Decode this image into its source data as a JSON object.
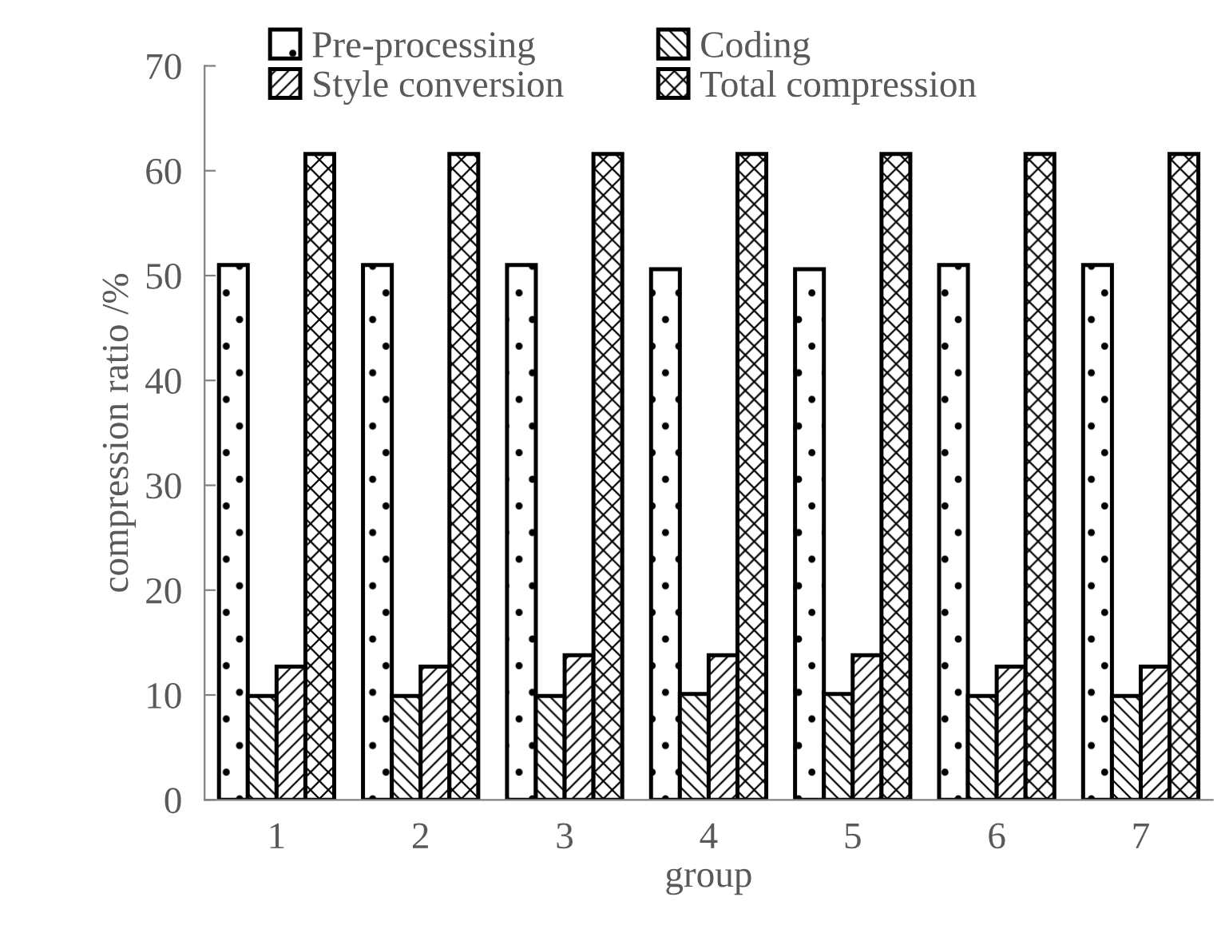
{
  "chart_data": {
    "type": "bar",
    "xlabel": "group",
    "ylabel": "compression ratio /%",
    "categories": [
      "1",
      "2",
      "3",
      "4",
      "5",
      "6",
      "7"
    ],
    "series": [
      {
        "name": "Pre-processing",
        "color": "#000000",
        "values": [
          51.0,
          51.0,
          51.0,
          50.6,
          50.6,
          51.0,
          51.0
        ]
      },
      {
        "name": "Coding",
        "color": "#000000",
        "values": [
          9.9,
          9.9,
          9.9,
          10.1,
          10.1,
          9.9,
          9.9
        ]
      },
      {
        "name": "Style conversion",
        "color": "#000000",
        "values": [
          12.7,
          12.7,
          13.8,
          13.8,
          13.8,
          12.7,
          12.7
        ]
      },
      {
        "name": "Total compression",
        "color": "#000000",
        "values": [
          61.6,
          61.6,
          61.6,
          61.6,
          61.6,
          61.6,
          61.6
        ]
      }
    ],
    "ylim": [
      0,
      70
    ],
    "yticks": [
      0,
      10,
      20,
      30,
      40,
      50,
      60,
      70
    ],
    "grid": false,
    "legend": "top"
  }
}
